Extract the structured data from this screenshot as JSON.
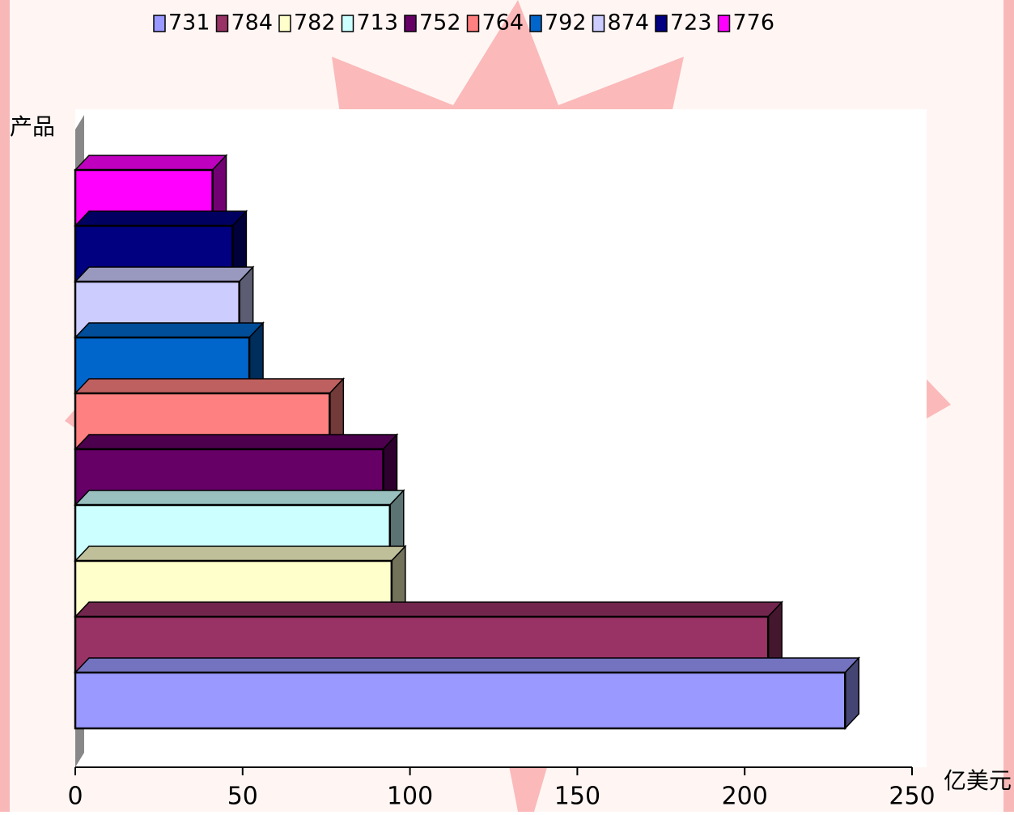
{
  "chart_data": {
    "type": "bar3d-horizontal",
    "x_label": "亿美元",
    "y_label": "产品",
    "xlim": [
      0,
      250
    ],
    "xticks": [
      0,
      50,
      100,
      150,
      200,
      250
    ],
    "series": [
      {
        "name": "731",
        "color": "#9999ff",
        "values": [
          230
        ]
      },
      {
        "name": "784",
        "color": "#993366",
        "values": [
          207
        ]
      },
      {
        "name": "782",
        "color": "#ffffcc",
        "values": [
          94.5
        ]
      },
      {
        "name": "713",
        "color": "#ccffff",
        "values": [
          94
        ]
      },
      {
        "name": "752",
        "color": "#660066",
        "values": [
          92
        ]
      },
      {
        "name": "764",
        "color": "#ff8080",
        "values": [
          76
        ]
      },
      {
        "name": "792",
        "color": "#0066cc",
        "values": [
          52
        ]
      },
      {
        "name": "874",
        "color": "#ccccff",
        "values": [
          49
        ]
      },
      {
        "name": "723",
        "color": "#000080",
        "values": [
          47
        ]
      },
      {
        "name": "776",
        "color": "#ff00ff",
        "values": [
          41
        ]
      }
    ]
  }
}
